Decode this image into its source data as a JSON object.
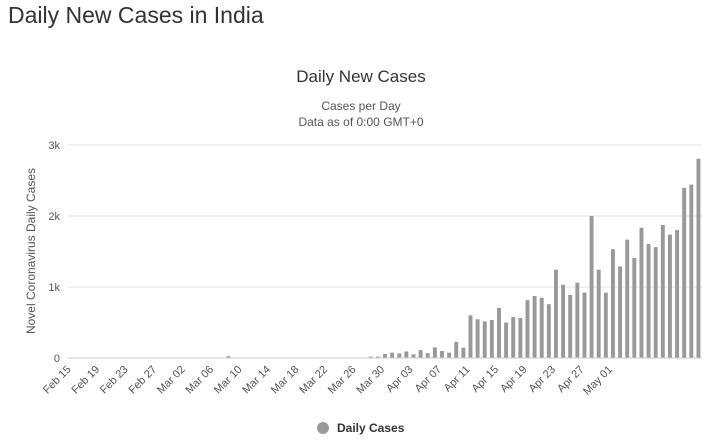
{
  "page": {
    "heading": "Daily New Cases in India"
  },
  "chart_data": {
    "type": "bar",
    "title": "Daily New Cases",
    "subtitle": "Cases per Day",
    "subtitle2": "Data as of 0:00 GMT+0",
    "xlabel": "",
    "ylabel": "Novel Coronavirus Daily Cases",
    "ylim": [
      0,
      3000
    ],
    "yticks": [
      {
        "value": 0,
        "label": "0"
      },
      {
        "value": 1000,
        "label": "1k"
      },
      {
        "value": 2000,
        "label": "2k"
      },
      {
        "value": 3000,
        "label": "3k"
      }
    ],
    "xtick_labels": [
      "Feb 15",
      "Feb 19",
      "Feb 23",
      "Feb 27",
      "Mar 02",
      "Mar 06",
      "Mar 10",
      "Mar 14",
      "Mar 18",
      "Mar 22",
      "Mar 26",
      "Mar 30",
      "Apr 03",
      "Apr 07",
      "Apr 11",
      "Apr 15",
      "Apr 19",
      "Apr 23",
      "Apr 27",
      "May 01"
    ],
    "xtick_every": 4,
    "series": [
      {
        "name": "Daily Cases",
        "color": "#999999",
        "values": [
          0,
          0,
          0,
          0,
          0,
          0,
          0,
          0,
          0,
          0,
          0,
          0,
          0,
          0,
          0,
          0,
          0,
          0,
          0,
          0,
          0,
          0,
          25,
          0,
          0,
          0,
          0,
          0,
          0,
          0,
          0,
          0,
          0,
          0,
          0,
          0,
          0,
          0,
          0,
          0,
          0,
          0,
          18,
          20,
          56,
          75,
          64,
          92,
          52,
          111,
          68,
          149,
          98,
          75,
          227,
          146,
          601,
          545,
          515,
          536,
          705,
          499,
          577,
          564,
          815,
          874,
          848,
          758,
          1243,
          1031,
          887,
          1061,
          922,
          2000,
          1243,
          919,
          1533,
          1290,
          1667,
          1408,
          1835,
          1607,
          1561,
          1873,
          1738,
          1801,
          2396,
          2442,
          2806
        ]
      }
    ]
  }
}
